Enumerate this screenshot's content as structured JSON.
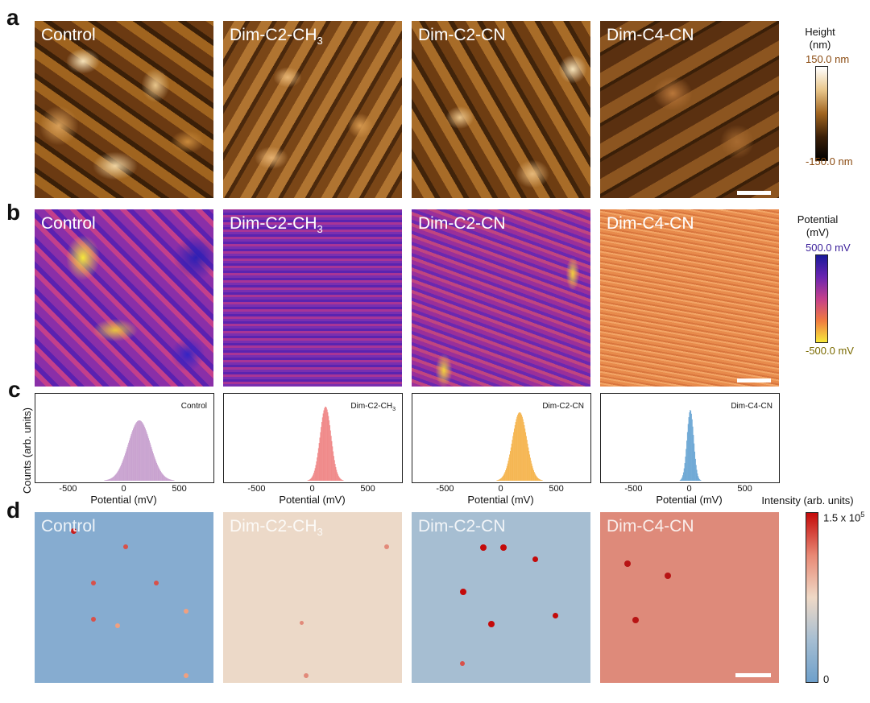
{
  "panel_letters": {
    "a": "a",
    "b": "b",
    "c": "c",
    "d": "d"
  },
  "samples": [
    "Control",
    "Dim-C2-CH",
    "Dim-C2-CN",
    "Dim-C4-CN"
  ],
  "sub3": "3",
  "height_colorbar": {
    "title_line1": "Height",
    "title_line2": "(nm)",
    "max": "150.0 nm",
    "min": "-150.0 nm"
  },
  "potential_colorbar": {
    "title_line1": "Potential",
    "title_line2": "(mV)",
    "max": "500.0 mV",
    "min": "-500.0 mV"
  },
  "intensity_colorbar": {
    "title": "Intensity (arb. units)",
    "max_prefix": "1.5 x 10",
    "max_exp": "5",
    "min": "0"
  },
  "histograms": {
    "ylabel": "Counts (arb. units)",
    "xlabel": "Potential (mV)",
    "xticks": [
      "-500",
      "0",
      "500"
    ]
  },
  "colors": {
    "afm_dark": "#3a1f08",
    "afm_mid": "#a0641f",
    "afm_light": "#f6e2b8",
    "kpfm_control": "#8a2fa8",
    "kpfm_c4cn": "#e88b4c",
    "pl_blue": "#7ea9cf",
    "pl_beige": "#efd9c6",
    "pl_red": "#d8514a",
    "hist_control": "#c9a3d0",
    "hist_c2ch3": "#f08a8a",
    "hist_c2cn": "#f5b652",
    "hist_c4cn": "#6ea8d5"
  },
  "chart_data": [
    {
      "type": "bar",
      "title": "Control",
      "xlabel": "Potential (mV)",
      "ylabel": "Counts (arb. units)",
      "xlim": [
        -800,
        800
      ],
      "peak_center": 130,
      "peak_width": 100,
      "relative_height": 0.75
    },
    {
      "type": "bar",
      "title": "Dim-C2-CH3",
      "xlabel": "Potential (mV)",
      "ylabel": "",
      "xlim": [
        -800,
        800
      ],
      "peak_center": 110,
      "peak_width": 50,
      "relative_height": 0.92
    },
    {
      "type": "bar",
      "title": "Dim-C2-CN",
      "xlabel": "Potential (mV)",
      "ylabel": "",
      "xlim": [
        -800,
        800
      ],
      "peak_center": 160,
      "peak_width": 65,
      "relative_height": 0.85
    },
    {
      "type": "bar",
      "title": "Dim-C4-CN",
      "xlabel": "Potential (mV)",
      "ylabel": "",
      "xlim": [
        -800,
        800
      ],
      "peak_center": 0,
      "peak_width": 30,
      "relative_height": 0.88
    }
  ]
}
